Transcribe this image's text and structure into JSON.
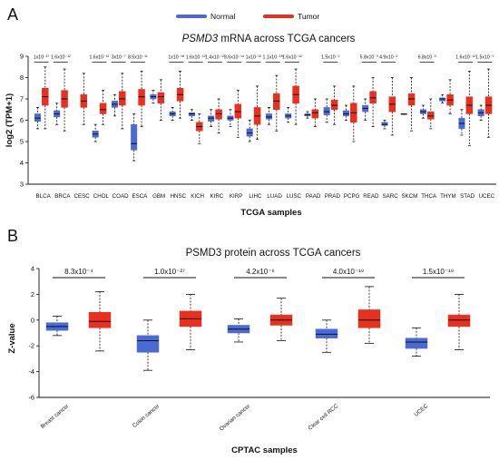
{
  "panel_a": {
    "letter": "A",
    "title_gene": "PSMD3",
    "title_rest": " mRNA across TCGA cancers",
    "legend": [
      {
        "name": "Normal",
        "color": "#4a6ad6"
      },
      {
        "name": "Tumor",
        "color": "#e8301f"
      }
    ]
  },
  "panel_b": {
    "letter": "B"
  },
  "chart_data": [
    {
      "type": "box",
      "title": "PSMD3 mRNA across TCGA cancers",
      "xlabel": "TCGA samples",
      "ylabel": "log2 (TPM+1)",
      "ylim": [
        3,
        9
      ],
      "yticks": [
        3,
        4,
        5,
        6,
        7,
        8,
        9
      ],
      "legend_position": "top",
      "categories": [
        "BLCA",
        "BRCA",
        "CESC",
        "CHOL",
        "COAD",
        "ESCA",
        "GBM",
        "HNSC",
        "KICH",
        "KIRC",
        "KIRP",
        "LIHC",
        "LUAD",
        "LUSC",
        "PAAD",
        "PRAD",
        "PCPG",
        "READ",
        "SARC",
        "SKCM",
        "THCA",
        "THYM",
        "STAD",
        "UCEC"
      ],
      "series": [
        {
          "name": "Normal",
          "color": "#4a6ad6",
          "boxes": [
            {
              "category": "BLCA",
              "min": 5.6,
              "q1": 5.95,
              "median": 6.1,
              "q3": 6.3,
              "max": 6.6
            },
            {
              "category": "BRCA",
              "min": 5.8,
              "q1": 6.15,
              "median": 6.3,
              "q3": 6.45,
              "max": 6.8
            },
            {
              "category": "CESC",
              "min": null,
              "q1": null,
              "median": null,
              "q3": null,
              "max": null
            },
            {
              "category": "CHOL",
              "min": 5.0,
              "q1": 5.2,
              "median": 5.35,
              "q3": 5.5,
              "max": 5.8
            },
            {
              "category": "COAD",
              "min": 6.2,
              "q1": 6.6,
              "median": 6.75,
              "q3": 6.9,
              "max": 7.2
            },
            {
              "category": "ESCA",
              "min": 4.1,
              "q1": 4.6,
              "median": 4.9,
              "q3": 5.8,
              "max": 6.3
            },
            {
              "category": "GBM",
              "min": 6.8,
              "q1": 7.0,
              "median": 7.1,
              "q3": 7.2,
              "max": 7.4
            },
            {
              "category": "HNSC",
              "min": 6.0,
              "q1": 6.2,
              "median": 6.3,
              "q3": 6.4,
              "max": 6.6
            },
            {
              "category": "KICH",
              "min": 6.0,
              "q1": 6.2,
              "median": 6.3,
              "q3": 6.35,
              "max": 6.5
            },
            {
              "category": "KIRC",
              "min": 5.7,
              "q1": 5.95,
              "median": 6.1,
              "q3": 6.2,
              "max": 6.5
            },
            {
              "category": "KIRP",
              "min": 5.7,
              "q1": 6.0,
              "median": 6.1,
              "q3": 6.2,
              "max": 6.5
            },
            {
              "category": "LIHC",
              "min": 5.0,
              "q1": 5.25,
              "median": 5.4,
              "q3": 5.6,
              "max": 6.0
            },
            {
              "category": "LUAD",
              "min": 5.8,
              "q1": 6.05,
              "median": 6.15,
              "q3": 6.3,
              "max": 6.6
            },
            {
              "category": "LUSC",
              "min": 5.9,
              "q1": 6.1,
              "median": 6.2,
              "q3": 6.3,
              "max": 6.6
            },
            {
              "category": "PAAD",
              "min": 6.1,
              "q1": 6.2,
              "median": 6.25,
              "q3": 6.3,
              "max": 6.4
            },
            {
              "category": "PRAD",
              "min": 5.9,
              "q1": 6.25,
              "median": 6.4,
              "q3": 6.6,
              "max": 7.0
            },
            {
              "category": "PCPG",
              "min": 6.0,
              "q1": 6.2,
              "median": 6.3,
              "q3": 6.45,
              "max": 6.7
            },
            {
              "category": "READ",
              "min": 6.0,
              "q1": 6.4,
              "median": 6.55,
              "q3": 6.7,
              "max": 7.0
            },
            {
              "category": "SARC",
              "min": 5.6,
              "q1": 5.75,
              "median": 5.8,
              "q3": 5.9,
              "max": 6.0
            },
            {
              "category": "SKCM",
              "min": 6.3,
              "q1": 6.3,
              "median": 6.3,
              "q3": 6.3,
              "max": 6.3
            },
            {
              "category": "THCA",
              "min": 6.1,
              "q1": 6.3,
              "median": 6.4,
              "q3": 6.5,
              "max": 6.7
            },
            {
              "category": "THYM",
              "min": 6.8,
              "q1": 6.9,
              "median": 7.0,
              "q3": 7.05,
              "max": 7.2
            },
            {
              "category": "STAD",
              "min": 5.3,
              "q1": 5.6,
              "median": 5.85,
              "q3": 6.1,
              "max": 6.5
            },
            {
              "category": "UCEC",
              "min": 6.0,
              "q1": 6.2,
              "median": 6.35,
              "q3": 6.5,
              "max": 6.7
            }
          ]
        },
        {
          "name": "Tumor",
          "color": "#e8301f",
          "boxes": [
            {
              "category": "BLCA",
              "min": 5.6,
              "q1": 6.7,
              "median": 7.1,
              "q3": 7.5,
              "max": 8.5
            },
            {
              "category": "BRCA",
              "min": 5.5,
              "q1": 6.6,
              "median": 7.0,
              "q3": 7.4,
              "max": 8.4
            },
            {
              "category": "CESC",
              "min": 5.8,
              "q1": 6.6,
              "median": 6.9,
              "q3": 7.2,
              "max": 8.2
            },
            {
              "category": "CHOL",
              "min": 5.8,
              "q1": 6.3,
              "median": 6.5,
              "q3": 6.8,
              "max": 7.4
            },
            {
              "category": "COAD",
              "min": 5.6,
              "q1": 6.7,
              "median": 7.0,
              "q3": 7.35,
              "max": 8.2
            },
            {
              "category": "ESCA",
              "min": 5.7,
              "q1": 6.7,
              "median": 7.1,
              "q3": 7.45,
              "max": 8.3
            },
            {
              "category": "GBM",
              "min": 6.0,
              "q1": 6.8,
              "median": 7.1,
              "q3": 7.3,
              "max": 7.9
            },
            {
              "category": "HNSC",
              "min": 6.1,
              "q1": 6.9,
              "median": 7.2,
              "q3": 7.5,
              "max": 8.3
            },
            {
              "category": "KICH",
              "min": 4.9,
              "q1": 5.5,
              "median": 5.7,
              "q3": 5.9,
              "max": 6.3
            },
            {
              "category": "KIRC",
              "min": 5.4,
              "q1": 6.05,
              "median": 6.3,
              "q3": 6.5,
              "max": 7.0
            },
            {
              "category": "KIRP",
              "min": 5.2,
              "q1": 6.1,
              "median": 6.4,
              "q3": 6.75,
              "max": 7.4
            },
            {
              "category": "LIHC",
              "min": 5.1,
              "q1": 5.8,
              "median": 6.2,
              "q3": 6.6,
              "max": 7.6
            },
            {
              "category": "LUAD",
              "min": 5.5,
              "q1": 6.5,
              "median": 6.9,
              "q3": 7.25,
              "max": 8.1
            },
            {
              "category": "LUSC",
              "min": 5.8,
              "q1": 6.8,
              "median": 7.2,
              "q3": 7.6,
              "max": 8.4
            },
            {
              "category": "PAAD",
              "min": 5.7,
              "q1": 6.1,
              "median": 6.35,
              "q3": 6.5,
              "max": 7.0
            },
            {
              "category": "PRAD",
              "min": 5.8,
              "q1": 6.5,
              "median": 6.7,
              "q3": 6.95,
              "max": 7.6
            },
            {
              "category": "PCPG",
              "min": 5.0,
              "q1": 5.9,
              "median": 6.35,
              "q3": 6.8,
              "max": 7.6
            },
            {
              "category": "READ",
              "min": 5.7,
              "q1": 6.8,
              "median": 7.05,
              "q3": 7.35,
              "max": 8.0
            },
            {
              "category": "SARC",
              "min": 5.3,
              "q1": 6.4,
              "median": 6.75,
              "q3": 7.1,
              "max": 8.0
            },
            {
              "category": "SKCM",
              "min": 5.5,
              "q1": 6.7,
              "median": 7.0,
              "q3": 7.25,
              "max": 8.0
            },
            {
              "category": "THCA",
              "min": 5.6,
              "q1": 6.05,
              "median": 6.2,
              "q3": 6.4,
              "max": 7.0
            },
            {
              "category": "THYM",
              "min": 6.3,
              "q1": 6.7,
              "median": 6.95,
              "q3": 7.2,
              "max": 7.9
            },
            {
              "category": "STAD",
              "min": 4.8,
              "q1": 6.3,
              "median": 6.7,
              "q3": 7.1,
              "max": 8.3
            },
            {
              "category": "UCEC",
              "min": 5.2,
              "q1": 6.3,
              "median": 6.7,
              "q3": 7.1,
              "max": 8.4
            }
          ]
        }
      ],
      "annotations": [
        {
          "category": "BLCA",
          "text": "1x10⁻¹⁷"
        },
        {
          "category": "BRCA",
          "text": "1.6x10⁻¹²"
        },
        {
          "category": "CHOL",
          "text": "1.6x10⁻¹²"
        },
        {
          "category": "COAD",
          "text": "3x10⁻⁷"
        },
        {
          "category": "ESCA",
          "text": "8.5x10⁻¹¹"
        },
        {
          "category": "HNSC",
          "text": "1x10⁻¹⁸"
        },
        {
          "category": "KICH",
          "text": "1.6x10⁻¹²"
        },
        {
          "category": "KIRC",
          "text": "1.4x10⁻¹³"
        },
        {
          "category": "KIRP",
          "text": "3.6x10⁻¹⁴"
        },
        {
          "category": "LIHC",
          "text": "1x10⁻¹²"
        },
        {
          "category": "LUAD",
          "text": "1.1x10⁻¹⁸"
        },
        {
          "category": "LUSC",
          "text": "1.6x10⁻¹²"
        },
        {
          "category": "PRAD",
          "text": "1.5x10⁻⁴"
        },
        {
          "category": "READ",
          "text": "5.8x10⁻⁵"
        },
        {
          "category": "SARC",
          "text": "4.9x10⁻²"
        },
        {
          "category": "THCA",
          "text": "6.8x10⁻³"
        },
        {
          "category": "STAD",
          "text": "1.6x10⁻¹²"
        },
        {
          "category": "UCEC",
          "text": "1.5x10⁻⁵"
        }
      ]
    },
    {
      "type": "box",
      "title": "PSMD3 protein across TCGA cancers",
      "xlabel": "CPTAC samples",
      "ylabel": "Z-value",
      "ylim": [
        -6,
        4
      ],
      "yticks": [
        -6,
        -4,
        -2,
        0,
        2,
        4
      ],
      "categories": [
        "Breast cancer",
        "Colon cancer",
        "Ovarian cancer",
        "Clear cell RCC",
        "UCEC"
      ],
      "series": [
        {
          "name": "Normal",
          "color": "#4a6ad6",
          "boxes": [
            {
              "category": "Breast cancer",
              "min": -1.2,
              "q1": -0.8,
              "median": -0.5,
              "q3": -0.2,
              "max": 0.3
            },
            {
              "category": "Colon cancer",
              "min": -3.9,
              "q1": -2.5,
              "median": -1.6,
              "q3": -1.2,
              "max": 0.0
            },
            {
              "category": "Ovarian cancer",
              "min": -1.7,
              "q1": -1.0,
              "median": -0.7,
              "q3": -0.4,
              "max": 0.1
            },
            {
              "category": "Clear cell RCC",
              "min": -2.5,
              "q1": -1.4,
              "median": -1.1,
              "q3": -0.7,
              "max": 0.0
            },
            {
              "category": "UCEC",
              "min": -2.8,
              "q1": -2.2,
              "median": -1.7,
              "q3": -1.4,
              "max": -0.6
            }
          ]
        },
        {
          "name": "Tumor",
          "color": "#e8301f",
          "boxes": [
            {
              "category": "Breast cancer",
              "min": -2.4,
              "q1": -0.6,
              "median": -0.1,
              "q3": 0.6,
              "max": 2.2
            },
            {
              "category": "Colon cancer",
              "min": -2.3,
              "q1": -0.5,
              "median": 0.1,
              "q3": 0.7,
              "max": 2.0
            },
            {
              "category": "Ovarian cancer",
              "min": -1.6,
              "q1": -0.4,
              "median": 0.0,
              "q3": 0.4,
              "max": 1.7
            },
            {
              "category": "Clear cell RCC",
              "min": -1.8,
              "q1": -0.6,
              "median": 0.0,
              "q3": 0.8,
              "max": 2.6
            },
            {
              "category": "UCEC",
              "min": -2.3,
              "q1": -0.5,
              "median": 0.0,
              "q3": 0.4,
              "max": 2.0
            }
          ]
        }
      ],
      "annotations": [
        {
          "category": "Breast cancer",
          "text": "8.3x10⁻⁴"
        },
        {
          "category": "Colon cancer",
          "text": "1.0x10⁻²⁷"
        },
        {
          "category": "Ovarian cancer",
          "text": "4.2x10⁻⁶"
        },
        {
          "category": "Clear cell RCC",
          "text": "4.0x10⁻¹⁹"
        },
        {
          "category": "UCEC",
          "text": "1.5x10⁻¹⁹"
        }
      ]
    }
  ]
}
